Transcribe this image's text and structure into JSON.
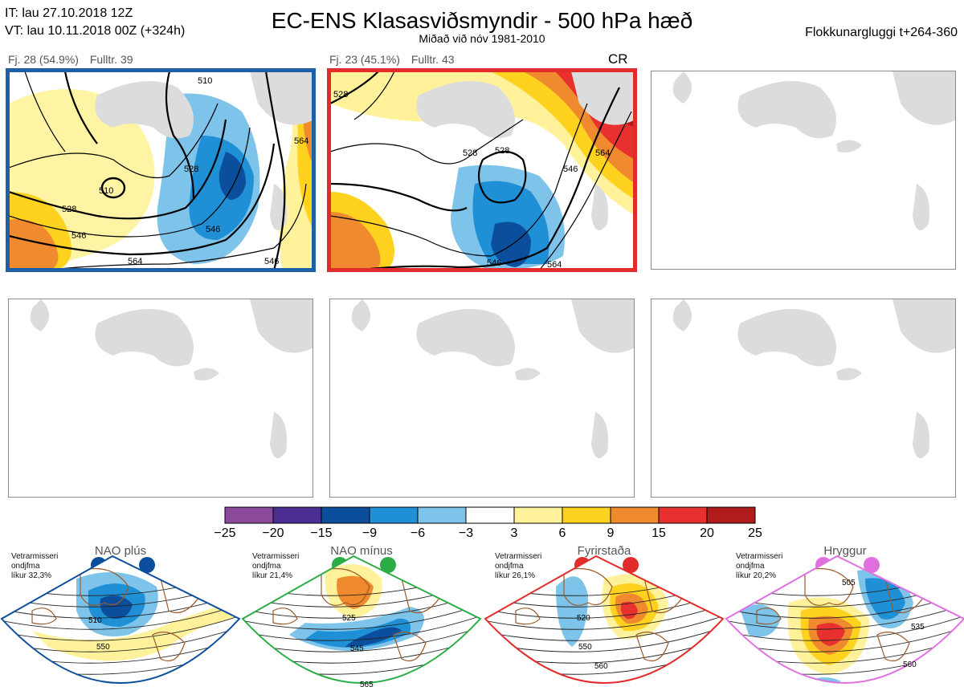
{
  "header": {
    "it_line": "IT: lau 27.10.2018 12Z",
    "vt_line": "VT: lau 10.11.2018 00Z  (+324h)",
    "title": "EC-ENS Klasasviðsmyndir - 500 hPa hæð",
    "subtitle": "Miðað við nóv 1981-2010",
    "window": "Flokkunargluggi t+264-360"
  },
  "clusters": [
    {
      "count_label": "Fj. 28 (54.9%)",
      "rep_label": "Fulltr. 39",
      "frame_color": "#1f5fa5",
      "regime": "NAO plús",
      "contours": [
        "510",
        "528",
        "546",
        "564",
        "510",
        "528",
        "546",
        "564",
        "546"
      ]
    },
    {
      "count_label": "Fj. 23 (45.1%)",
      "rep_label": "Fulltr. 43",
      "badge": "CR",
      "frame_color": "#e22b2b",
      "regime": "NAO mínus",
      "contours": [
        "528",
        "528",
        "546",
        "564",
        "528",
        "546",
        "564"
      ]
    }
  ],
  "colorbar": {
    "ticks": [
      "−25",
      "−20",
      "−15",
      "−9",
      "−6",
      "−3",
      "3",
      "6",
      "9",
      "15",
      "20",
      "25"
    ],
    "colors": [
      "#8b4a9c",
      "#4b2e93",
      "#0b4f9c",
      "#1f8fd6",
      "#7ec3ea",
      "#ffffff",
      "#fff29a",
      "#ffd21f",
      "#f08a2e",
      "#e8302f",
      "#b01c1c"
    ]
  },
  "regimes": [
    {
      "name": "NAO plús",
      "info": [
        "Vetrarmisseri",
        "ondjfma",
        "líkur 32,3%"
      ],
      "color": "#0b4f9c",
      "contours": [
        "510",
        "550"
      ]
    },
    {
      "name": "NAO mínus",
      "info": [
        "Vetrarmisseri",
        "ondjfma",
        "líkur 21,4%"
      ],
      "color": "#2aad45",
      "contours": [
        "525",
        "545",
        "565"
      ]
    },
    {
      "name": "Fyrirstaða",
      "info": [
        "Vetrarmisseri",
        "ondjfma",
        "líkur 26,1%"
      ],
      "color": "#e22b2b",
      "contours": [
        "520",
        "550",
        "560"
      ]
    },
    {
      "name": "Hryggur",
      "info": [
        "Vetrarmisseri",
        "ondjfma",
        "líkur 20,2%"
      ],
      "color": "#e070e0",
      "contours": [
        "505",
        "535",
        "560"
      ]
    }
  ]
}
